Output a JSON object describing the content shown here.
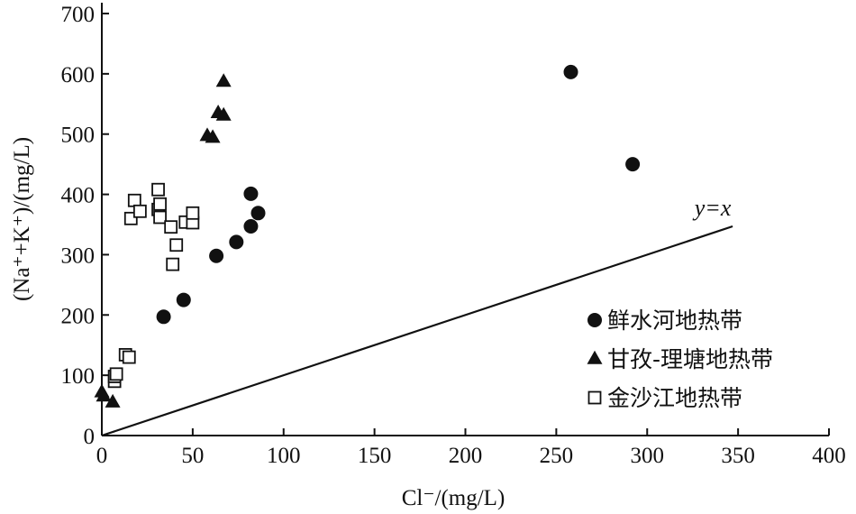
{
  "chart_data": {
    "type": "scatter",
    "xlabel": "Cl⁻/(mg/L)",
    "ylabel": "(Na⁺+K⁺)/(mg/L)",
    "xlim": [
      0,
      400
    ],
    "ylim": [
      0,
      700
    ],
    "x_ticks": [
      0,
      50,
      100,
      150,
      200,
      250,
      300,
      350,
      400
    ],
    "y_ticks": [
      0,
      100,
      200,
      300,
      400,
      500,
      600,
      700
    ],
    "grid": false,
    "legend_position": "bottom-right",
    "series": [
      {
        "name": "鲜水河地热带",
        "marker": "filled-circle",
        "color": "#111111",
        "points": [
          [
            34,
            197
          ],
          [
            45,
            225
          ],
          [
            63,
            298
          ],
          [
            74,
            321
          ],
          [
            82,
            347
          ],
          [
            86,
            369
          ],
          [
            82,
            401
          ],
          [
            258,
            603
          ],
          [
            292,
            450
          ]
        ]
      },
      {
        "name": "甘孜-理塘地热带",
        "marker": "filled-triangle",
        "color": "#111111",
        "points": [
          [
            0,
            72
          ],
          [
            1,
            65
          ],
          [
            6,
            55
          ],
          [
            58,
            497
          ],
          [
            61,
            494
          ],
          [
            64,
            535
          ],
          [
            67,
            531
          ],
          [
            67,
            587
          ]
        ]
      },
      {
        "name": "金沙江地热带",
        "marker": "open-square",
        "color": "#111111",
        "points": [
          [
            7,
            90
          ],
          [
            7,
            98
          ],
          [
            8,
            102
          ],
          [
            13,
            134
          ],
          [
            15,
            130
          ],
          [
            16,
            360
          ],
          [
            18,
            390
          ],
          [
            21,
            372
          ],
          [
            31,
            408
          ],
          [
            31,
            375
          ],
          [
            32,
            384
          ],
          [
            32,
            362
          ],
          [
            38,
            346
          ],
          [
            39,
            284
          ],
          [
            41,
            316
          ],
          [
            46,
            354
          ],
          [
            50,
            353
          ],
          [
            50,
            369
          ]
        ]
      }
    ],
    "reference_line": {
      "label": "y=x",
      "x": [
        0,
        347
      ],
      "y": [
        0,
        347
      ]
    }
  }
}
